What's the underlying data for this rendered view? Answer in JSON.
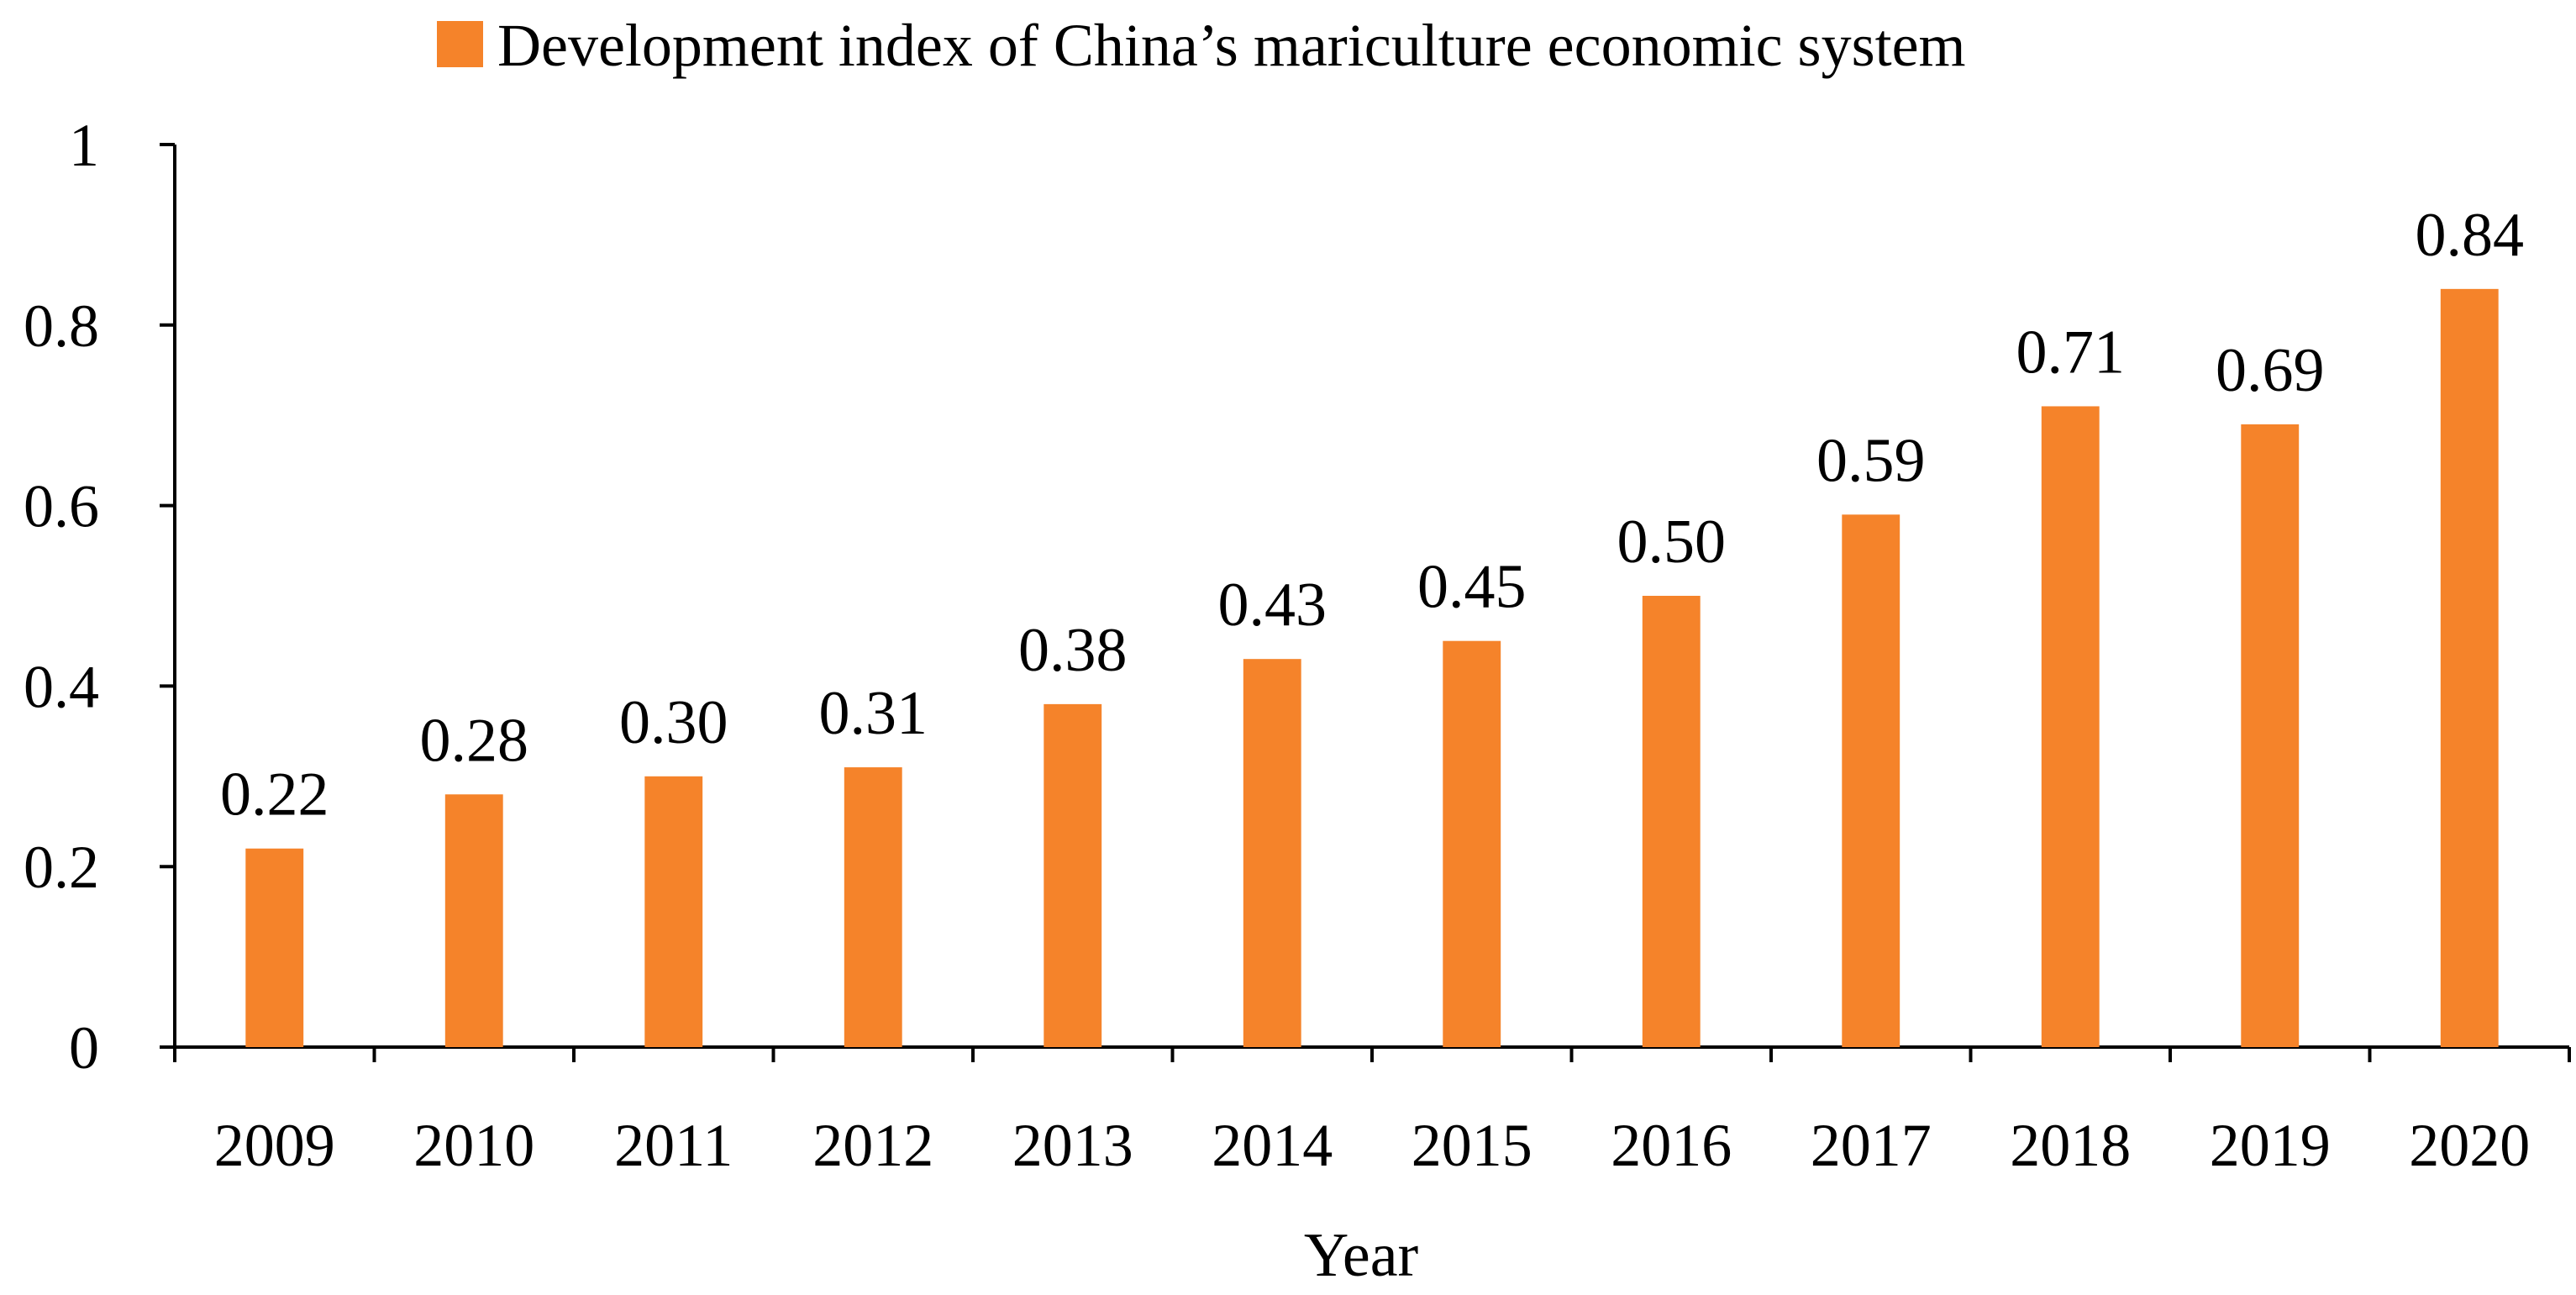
{
  "chart_data": {
    "type": "bar",
    "categories": [
      "2009",
      "2010",
      "2011",
      "2012",
      "2013",
      "2014",
      "2015",
      "2016",
      "2017",
      "2018",
      "2019",
      "2020"
    ],
    "series": [
      {
        "name": "Development index of China’s mariculture economic system",
        "values": [
          0.22,
          0.28,
          0.3,
          0.31,
          0.38,
          0.43,
          0.45,
          0.5,
          0.59,
          0.71,
          0.69,
          0.84
        ],
        "labels": [
          "0.22",
          "0.28",
          "0.30",
          "0.31",
          "0.38",
          "0.43",
          "0.45",
          "0.50",
          "0.59",
          "0.71",
          "0.69",
          "0.84"
        ],
        "color": "#F5832A"
      }
    ],
    "title": "",
    "xlabel": "Year",
    "ylabel": "",
    "ylim": [
      0,
      1
    ],
    "yticks": [
      0,
      0.2,
      0.4,
      0.6,
      0.8,
      1
    ],
    "ytick_labels": [
      "0",
      "0.2",
      "0.4",
      "0.6",
      "0.8",
      "1"
    ],
    "grid": false,
    "legend_position": "top"
  }
}
